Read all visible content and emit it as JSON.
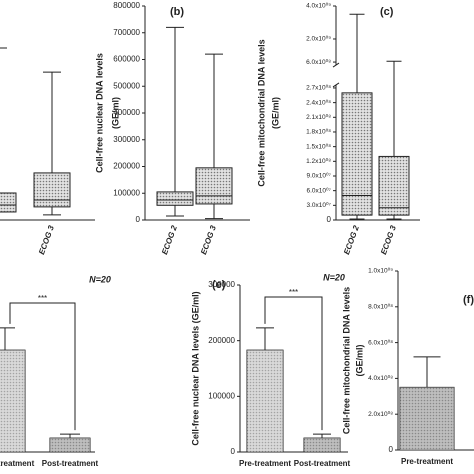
{
  "chart_data": [
    {
      "type": "box",
      "categories": [
        null,
        "ECOG 3"
      ],
      "boxes": [
        {
          "min": 30000,
          "q1": 30000,
          "median": 56000,
          "q3": 101000,
          "max": 643000
        },
        {
          "min": 19000,
          "q1": 49000,
          "median": 75000,
          "q3": 176000,
          "max": 553000
        }
      ],
      "ylim": [
        0,
        800000
      ],
      "color": "#bdbdbd"
    },
    {
      "type": "box",
      "panel_label": "(b)",
      "ylabel": [
        "Cell-free nuclear DNA levels",
        "(GE/ml)"
      ],
      "categories": [
        "ECOG 2",
        "ECOG 3"
      ],
      "boxes": [
        {
          "min": 15000,
          "q1": 55000,
          "median": 75000,
          "q3": 105000,
          "max": 720000
        },
        {
          "min": 5000,
          "q1": 60000,
          "median": 90000,
          "q3": 195000,
          "max": 620000
        }
      ],
      "ylim": [
        0,
        800000
      ],
      "yticks": [
        0,
        100000,
        200000,
        300000,
        400000,
        500000,
        600000,
        700000,
        800000
      ],
      "color": "#bdbdbd"
    },
    {
      "type": "box",
      "panel_label": "(c)",
      "ylabel": [
        "Cell-free mitochondrial DNA levels",
        "(GE/ml)"
      ],
      "categories": [
        "ECOG 2",
        "ECOG 3"
      ],
      "boxes": [
        {
          "min": 2000000,
          "q1": 10000000,
          "median": 50000000,
          "q3": 260000000,
          "max": 3500000000
        },
        {
          "min": 2000000,
          "q1": 10000000,
          "median": 25000000,
          "q3": 130000000,
          "max": 650000000
        }
      ],
      "ylim": [
        0,
        4000000000
      ],
      "axis_break": [
        270000000,
        600000000
      ],
      "yticks": [
        0,
        {
          "value": 30000000,
          "label": "3.0x10⁰⁷"
        },
        {
          "value": 60000000,
          "label": "6.0x10⁰⁷"
        },
        {
          "value": 90000000,
          "label": "9.0x10⁰⁷"
        },
        {
          "value": 120000000,
          "label": "1.2x10⁰⁸"
        },
        {
          "value": 150000000,
          "label": "1.5x10⁰⁸"
        },
        {
          "value": 180000000,
          "label": "1.8x10⁰⁸"
        },
        {
          "value": 210000000,
          "label": "2.1x10⁰⁸"
        },
        {
          "value": 240000000,
          "label": "2.4x10⁰⁸"
        },
        {
          "value": 270000000,
          "label": "2.7x10⁰⁸"
        },
        {
          "value": 600000000,
          "label": "6.0x10⁰⁸"
        },
        {
          "value": 2000000000,
          "label": "2.0x10⁰⁹"
        },
        {
          "value": 4000000000,
          "label": "4.0x10⁰⁹"
        }
      ],
      "color": "#bdbdbd"
    },
    {
      "type": "bar",
      "annotation": "N=20",
      "significance": "***",
      "categories": [
        "treatment",
        "Post-treatment"
      ],
      "values": [
        183000,
        25000
      ],
      "errors": [
        40000,
        7000
      ],
      "ylim": [
        0,
        300000
      ],
      "colors": [
        "#cfcfcf",
        "#9a9a9a"
      ]
    },
    {
      "type": "bar",
      "panel_label": "(e)",
      "annotation": "N=20",
      "significance": "***",
      "ylabel": [
        "Cell-free nuclear DNA levels (GE/ml)"
      ],
      "categories": [
        "Pre-treatment",
        "Post-treatment"
      ],
      "values": [
        183000,
        25000
      ],
      "errors": [
        40000,
        7000
      ],
      "ylim": [
        0,
        300000
      ],
      "yticks": [
        0,
        100000,
        200000,
        300000
      ],
      "colors": [
        "#cfcfcf",
        "#9a9a9a"
      ]
    },
    {
      "type": "bar",
      "panel_label": "(f)",
      "ylabel": [
        "Cell-free mitochondrial DNA levels",
        "(GE/ml)"
      ],
      "categories": [
        "Pre-treatment"
      ],
      "values": [
        350000000
      ],
      "errors": [
        170000000
      ],
      "ylim": [
        0,
        1000000000
      ],
      "yticks": [
        0,
        {
          "value": 200000000,
          "label": "2.0x10⁰⁸"
        },
        {
          "value": 400000000,
          "label": "4.0x10⁰⁸"
        },
        {
          "value": 600000000,
          "label": "6.0x10⁰⁸"
        },
        {
          "value": 800000000,
          "label": "8.0x10⁰⁸"
        },
        {
          "value": 1000000000,
          "label": "1.0x10⁰⁹"
        }
      ],
      "colors": [
        "#9a9a9a"
      ]
    }
  ]
}
